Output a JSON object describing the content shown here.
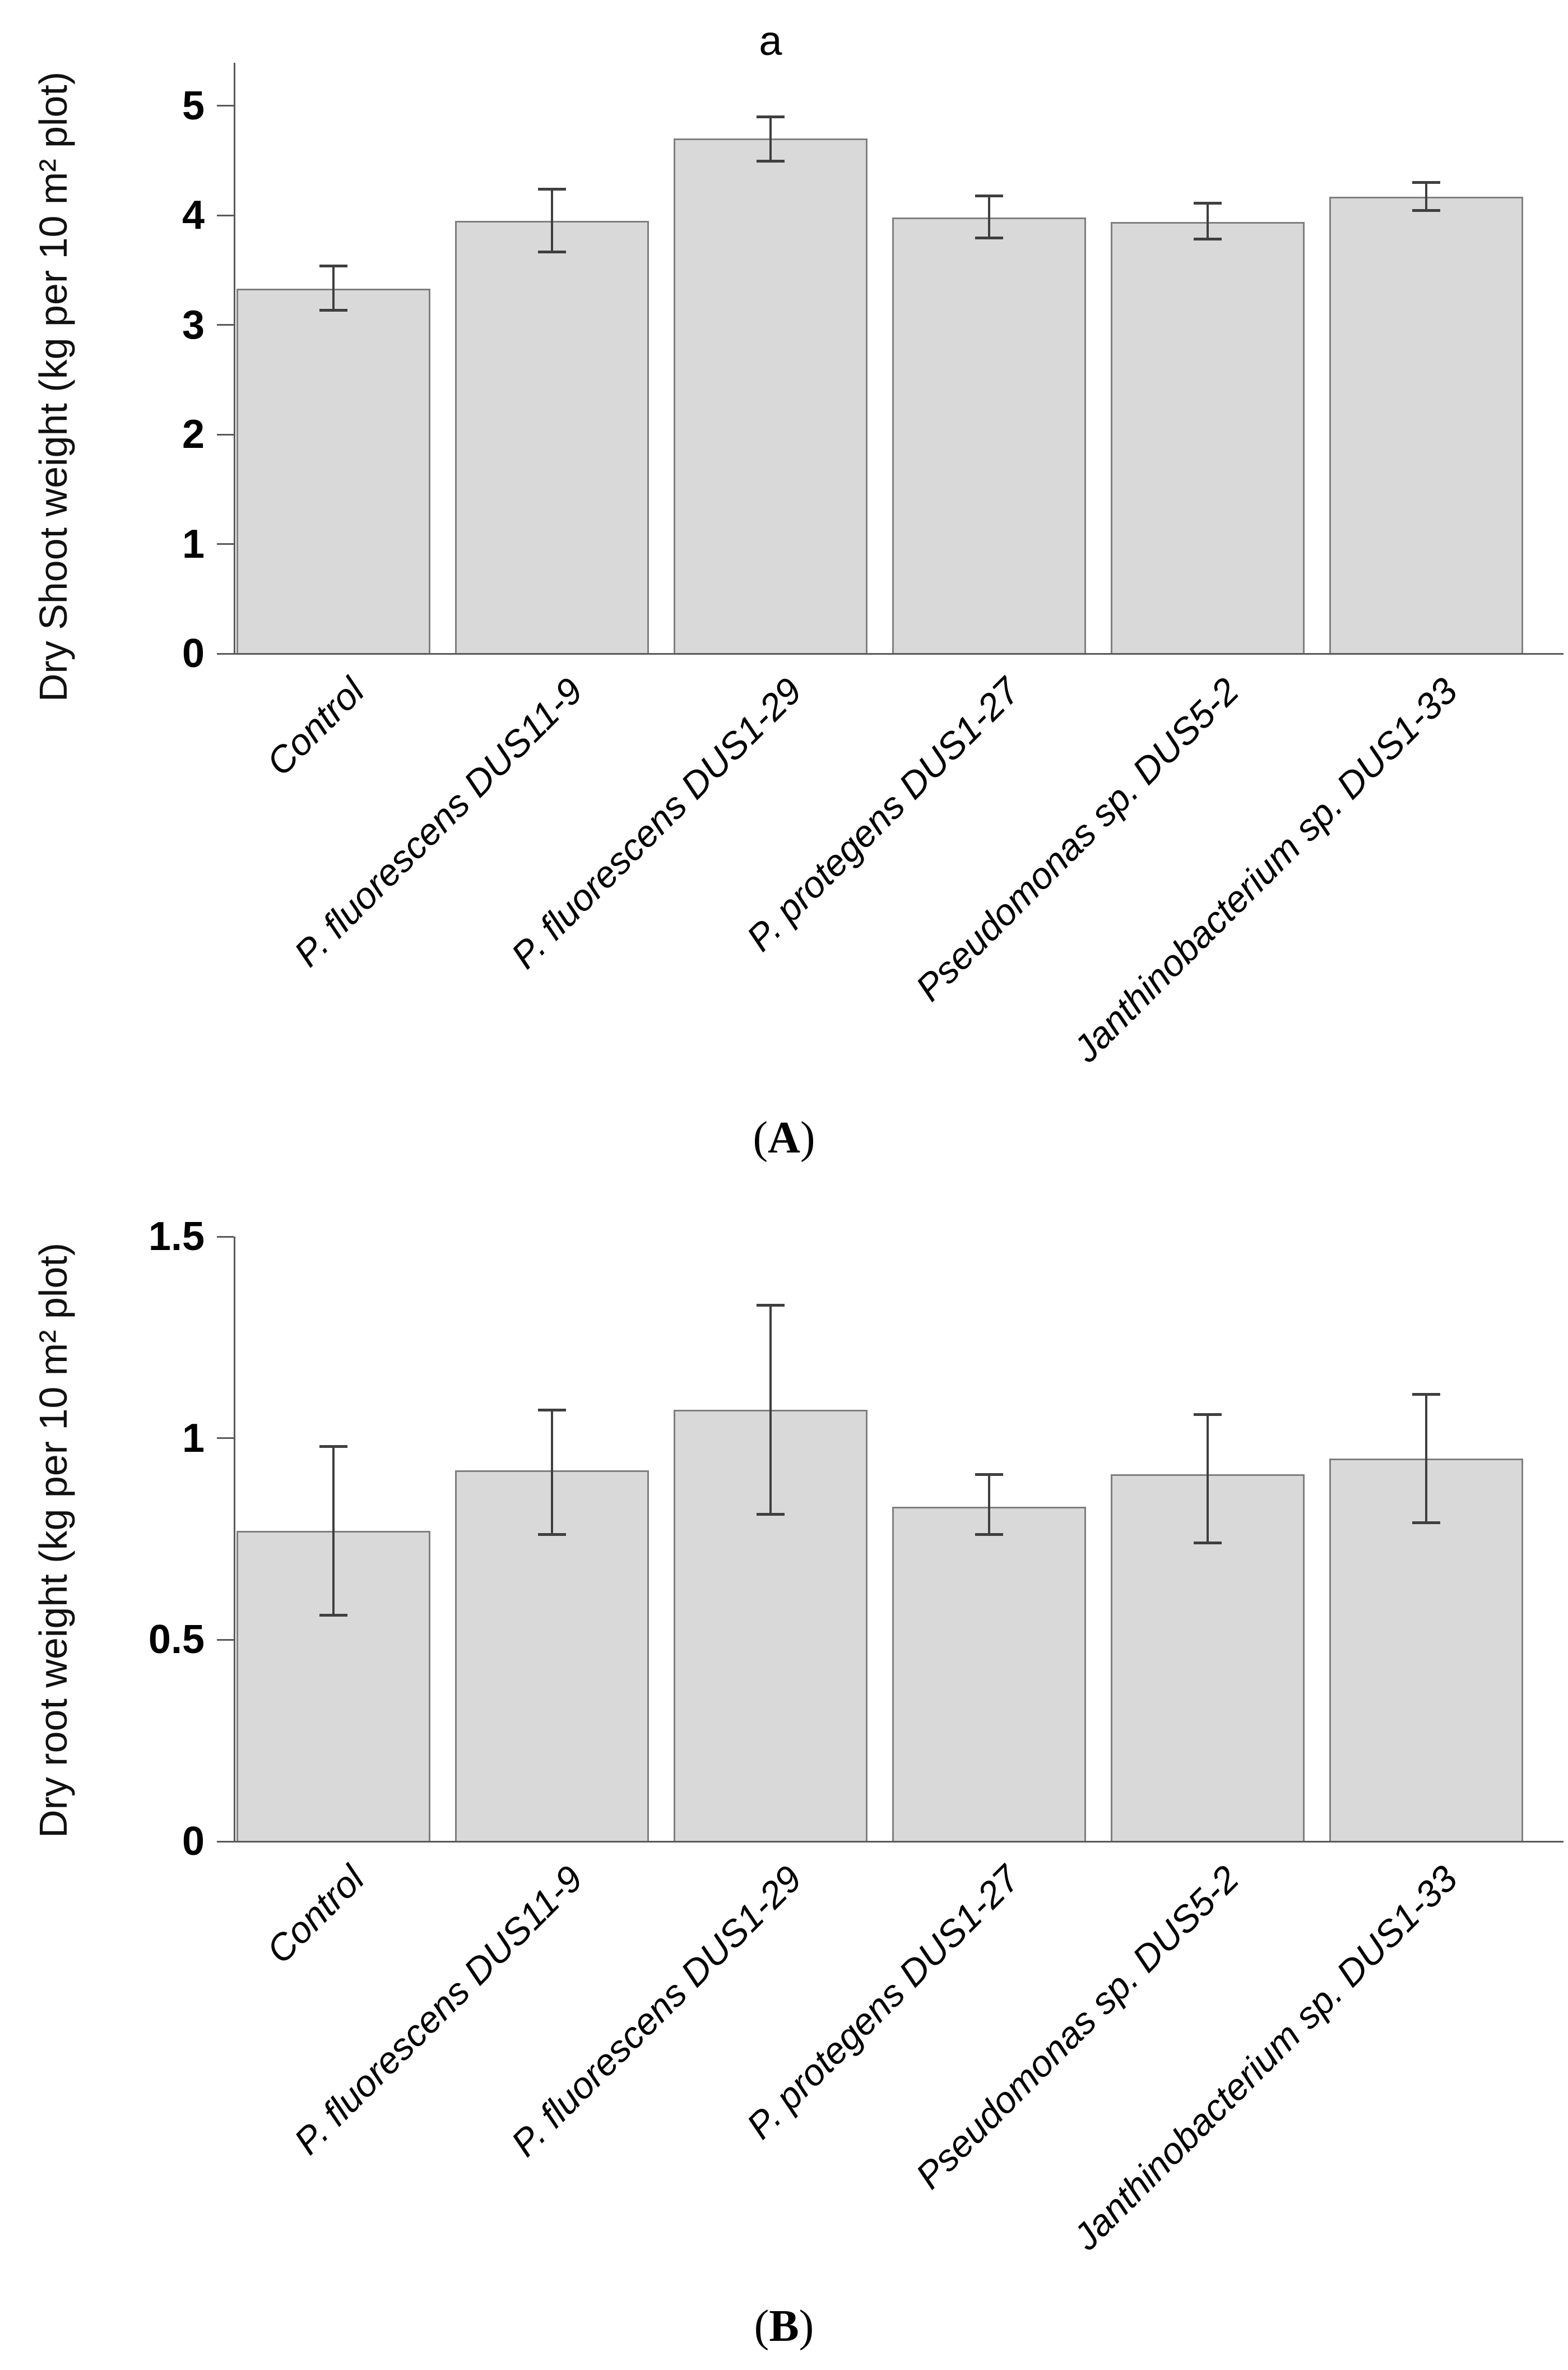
{
  "page": {
    "background": "#ffffff",
    "figure_type": "two-panel bar chart figure"
  },
  "colors": {
    "bar_fill": "#d9d9d9",
    "bar_border": "#7f7f7f",
    "axis": "#595959",
    "error_bar": "#3f3f3f",
    "text": "#000000"
  },
  "chart_data": [
    {
      "type": "bar",
      "panel": "A",
      "title": "",
      "ylabel": "Dry Shoot weight (kg per 10 m² plot)",
      "xlabel": "",
      "categories": [
        "Control",
        "P. fluorescens DUS11-9",
        "P. fluorescens DUS1-29",
        "P. protegens DUS1-27",
        "Pseudomonas sp. DUS5-2",
        "Janthinobacterium sp. DUS1-33"
      ],
      "values": [
        3.33,
        3.95,
        4.7,
        3.98,
        3.94,
        4.17
      ],
      "error_low": [
        3.13,
        3.66,
        4.49,
        3.79,
        3.78,
        4.04
      ],
      "error_high": [
        3.54,
        4.24,
        4.9,
        4.18,
        4.11,
        4.3
      ],
      "ytick_labels": [
        "0",
        "1",
        "2",
        "3",
        "4",
        "5"
      ],
      "ytick_values": [
        0,
        1,
        2,
        3,
        4,
        5
      ],
      "ylim": [
        0,
        5.4
      ],
      "grid": "off",
      "legend": "none",
      "annotations": [
        {
          "index": 2,
          "text": "a"
        }
      ],
      "caption_open": "(",
      "caption_letter": "A",
      "caption_close": ")"
    },
    {
      "type": "bar",
      "panel": "B",
      "title": "",
      "ylabel": "Dry root weight (kg per 10 m² plot)",
      "xlabel": "",
      "categories": [
        "Control",
        "P. fluorescens DUS11-9",
        "P. fluorescens DUS1-29",
        "P. protegens DUS1-27",
        "Pseudomonas sp. DUS5-2",
        "Janthinobacterium sp. DUS1-33"
      ],
      "values": [
        0.77,
        0.92,
        1.07,
        0.83,
        0.91,
        0.95
      ],
      "error_low": [
        0.56,
        0.76,
        0.81,
        0.76,
        0.74,
        0.79
      ],
      "error_high": [
        0.98,
        1.07,
        1.33,
        0.91,
        1.06,
        1.11
      ],
      "ytick_labels": [
        "0",
        "0.5",
        "1",
        "1.5"
      ],
      "ytick_values": [
        0,
        0.5,
        1,
        1.5
      ],
      "ylim": [
        0,
        1.5
      ],
      "grid": "off",
      "legend": "none",
      "annotations": [],
      "caption_open": "(",
      "caption_letter": "B",
      "caption_close": ")"
    }
  ]
}
